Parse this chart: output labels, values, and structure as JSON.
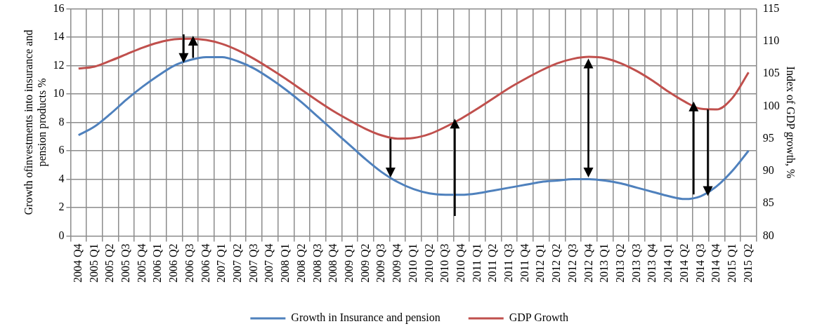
{
  "chart_data": {
    "type": "line",
    "categories": [
      "2004 Q4",
      "2005 Q1",
      "2005 Q2",
      "2005 Q3",
      "2005 Q4",
      "2006 Q1",
      "2006 Q2",
      "2006 Q3",
      "2006 Q4",
      "2007 Q1",
      "2007 Q2",
      "2007 Q3",
      "2007 Q4",
      "2008 Q1",
      "2008 Q2",
      "2008 Q3",
      "2008 Q4",
      "2009 Q1",
      "2009 Q2",
      "2009 Q3",
      "2009 Q4",
      "2010 Q1",
      "2010 Q2",
      "2010 Q3",
      "2010 Q4",
      "2011 Q1",
      "2011 Q2",
      "2011 Q3",
      "2011 Q4",
      "2012 Q1",
      "2012 Q2",
      "2012 Q3",
      "2012 Q4",
      "2013 Q1",
      "2013 Q2",
      "2013 Q3",
      "2013 Q4",
      "2014 Q1",
      "2014 Q2",
      "2014 Q3",
      "2014 Q4",
      "2015 Q1",
      "2015 Q2"
    ],
    "series": [
      {
        "name": "Growth in Insurance and pension",
        "color": "#4f81bd",
        "values": [
          7.1,
          7.7,
          8.6,
          9.6,
          10.5,
          11.3,
          12.0,
          12.4,
          12.6,
          12.6,
          12.3,
          11.8,
          11.1,
          10.3,
          9.4,
          8.4,
          7.4,
          6.4,
          5.4,
          4.5,
          3.8,
          3.3,
          3.0,
          2.9,
          2.9,
          3.0,
          3.2,
          3.4,
          3.6,
          3.8,
          3.9,
          4.0,
          4.0,
          3.9,
          3.7,
          3.4,
          3.1,
          2.8,
          2.6,
          2.8,
          3.5,
          4.6,
          6.0
        ]
      },
      {
        "name": "GDP Growth",
        "color": "#c0504d",
        "axis": "y2",
        "values": [
          105.8,
          106.1,
          107.0,
          108.0,
          109.0,
          109.8,
          110.3,
          110.4,
          110.2,
          109.6,
          108.6,
          107.3,
          105.8,
          104.2,
          102.5,
          100.8,
          99.2,
          97.8,
          96.5,
          95.5,
          95.0,
          95.1,
          95.7,
          96.8,
          98.1,
          99.6,
          101.2,
          102.8,
          104.2,
          105.5,
          106.6,
          107.3,
          107.6,
          107.4,
          106.6,
          105.4,
          103.9,
          102.2,
          100.7,
          99.6,
          99.5,
          101.3,
          105.2
        ]
      }
    ],
    "ylabel": "Growth ofinvestments into insurance and pension products %",
    "y2label": "Index of GDP growth, %",
    "ylim": [
      0,
      16
    ],
    "yticks": [
      0,
      2,
      4,
      6,
      8,
      10,
      12,
      14,
      16
    ],
    "y2lim": [
      80,
      115
    ],
    "y2ticks": [
      80,
      85,
      90,
      95,
      100,
      105,
      110,
      115
    ],
    "grid": true,
    "legend": "bottom",
    "marker": "none",
    "line_style": "solid"
  }
}
